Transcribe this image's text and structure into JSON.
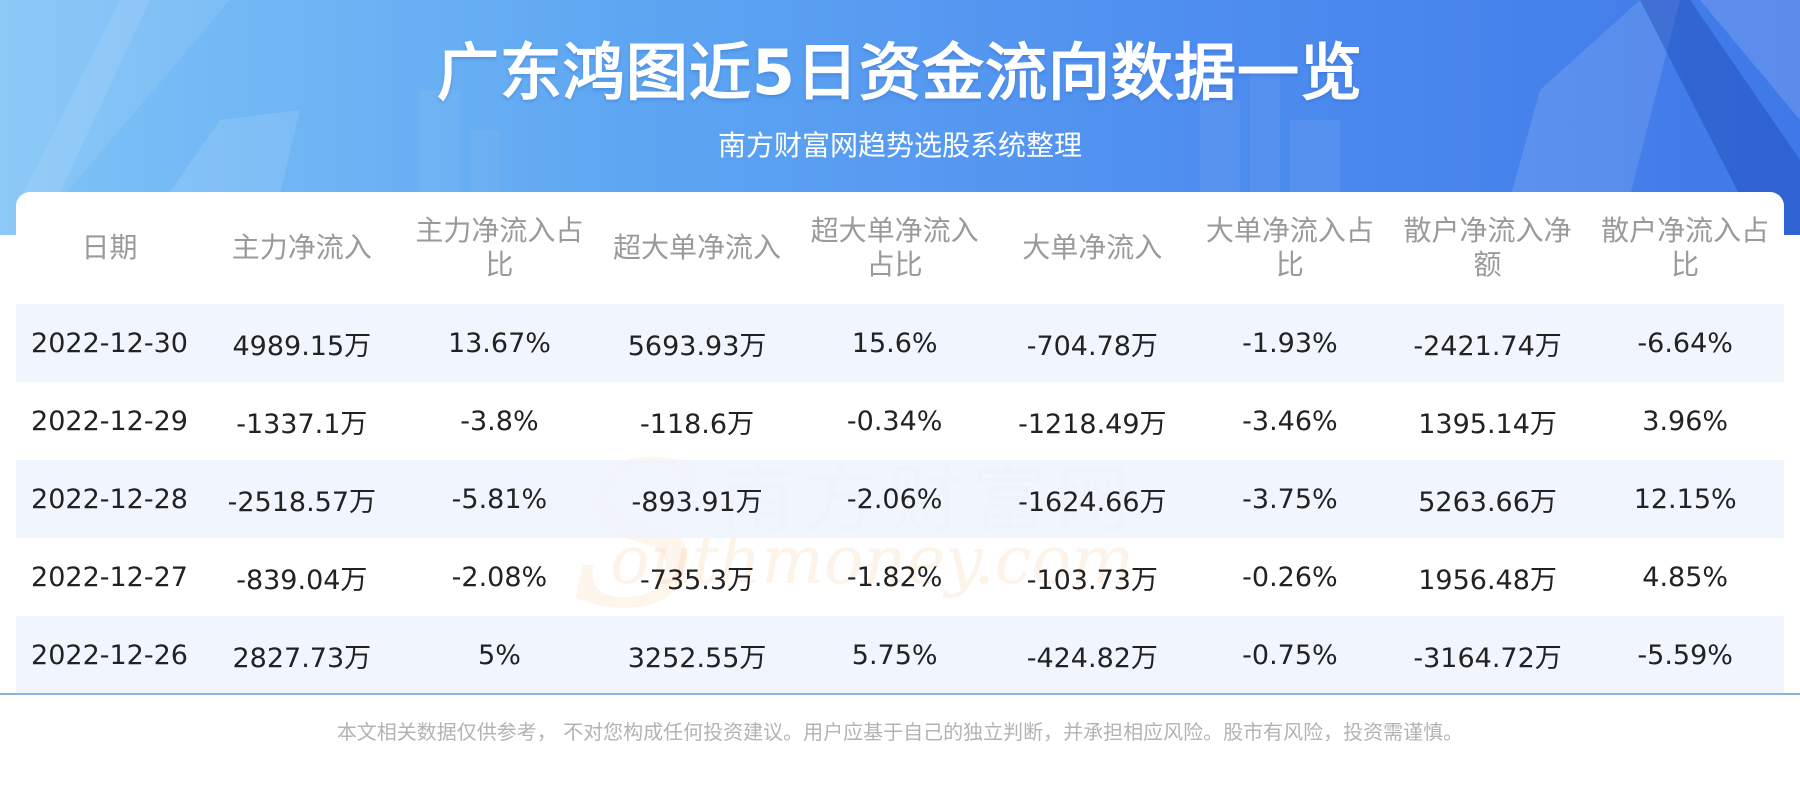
{
  "header": {
    "title": "广东鸿图近5日资金流向数据一览",
    "subtitle": "南方财富网趋势选股系统整理"
  },
  "watermark": {
    "cn": "南方财富网",
    "en": "outhmoney.com",
    "s": "S"
  },
  "table": {
    "columns": [
      "日期",
      "主力净流入",
      "主力净流入占比",
      "超大单净流入",
      "超大单净流入占比",
      "大单净流入",
      "大单净流入占比",
      "散户净流入净额",
      "散户净流入占比"
    ],
    "rows": [
      [
        "2022-12-30",
        "4989.15万",
        "13.67%",
        "5693.93万",
        "15.6%",
        "-704.78万",
        "-1.93%",
        "-2421.74万",
        "-6.64%"
      ],
      [
        "2022-12-29",
        "-1337.1万",
        "-3.8%",
        "-118.6万",
        "-0.34%",
        "-1218.49万",
        "-3.46%",
        "1395.14万",
        "3.96%"
      ],
      [
        "2022-12-28",
        "-2518.57万",
        "-5.81%",
        "-893.91万",
        "-2.06%",
        "-1624.66万",
        "-3.75%",
        "5263.66万",
        "12.15%"
      ],
      [
        "2022-12-27",
        "-839.04万",
        "-2.08%",
        "-735.3万",
        "-1.82%",
        "-103.73万",
        "-0.26%",
        "1956.48万",
        "4.85%"
      ],
      [
        "2022-12-26",
        "2827.73万",
        "5%",
        "3252.55万",
        "5.75%",
        "-424.82万",
        "-0.75%",
        "-3164.72万",
        "-5.59%"
      ]
    ]
  },
  "footer": {
    "disclaimer": "本文相关数据仅供参考， 不对您构成任何投资建议。用户应基于自己的独立判断，并承担相应风险。股市有风险，投资需谨慎。"
  },
  "colors": {
    "banner_start": "#7fc3f7",
    "banner_end": "#3f78e8",
    "header_text": "#9a9a9a",
    "row_stripe": "#eef4fe",
    "body_text": "#222222"
  }
}
